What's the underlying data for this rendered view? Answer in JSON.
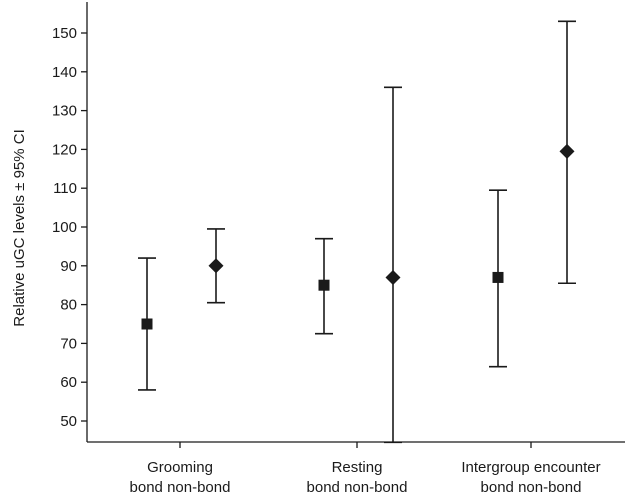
{
  "chart_data": {
    "type": "scatter",
    "title": "",
    "ylabel": "Relative uGC levels ± 95% CI",
    "xlabel": "",
    "ylim": [
      44,
      158
    ],
    "yticks": [
      50,
      60,
      70,
      80,
      90,
      100,
      110,
      120,
      130,
      140,
      150
    ],
    "groups": [
      {
        "label": "Grooming",
        "sublabels": [
          "bond",
          "non-bond"
        ]
      },
      {
        "label": "Resting",
        "sublabels": [
          "bond",
          "non-bond"
        ]
      },
      {
        "label": "Intergroup encounter",
        "sublabels": [
          "bond",
          "non-bond"
        ]
      }
    ],
    "series": [
      {
        "marker": "square",
        "values": [
          75,
          85,
          87
        ],
        "lower": [
          58,
          72.5,
          64
        ],
        "upper": [
          92,
          97,
          109.5
        ]
      },
      {
        "marker": "diamond",
        "values": [
          90,
          87,
          119.5
        ],
        "lower": [
          80.5,
          44.5,
          85.5
        ],
        "upper": [
          99.5,
          136,
          153
        ]
      }
    ],
    "grid": false,
    "legend": "none",
    "colors": {
      "marker": "#1a1a1a",
      "axis": "#1a1a1a"
    }
  }
}
